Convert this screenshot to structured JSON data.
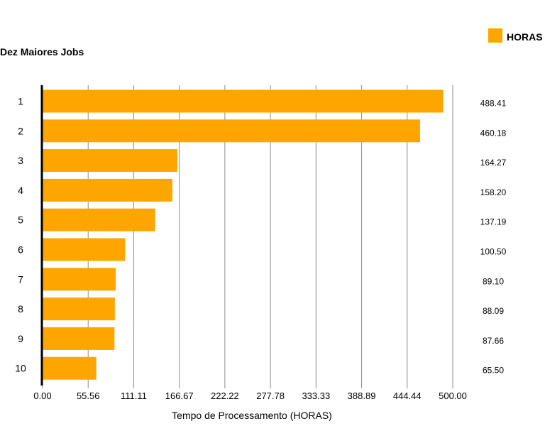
{
  "chart_data": {
    "type": "bar",
    "orientation": "horizontal",
    "title": "Dez Maiores Jobs",
    "xlabel": "Tempo de Processamento (HORAS)",
    "ylabel": "",
    "xlim": [
      0,
      500
    ],
    "grid": true,
    "legend_position": "top-right",
    "bar_color": "#FFA500",
    "ticks": [
      "0.00",
      "55.56",
      "111.11",
      "166.67",
      "222.22",
      "277.78",
      "333.33",
      "388.89",
      "444.44",
      "500.00"
    ],
    "tick_values": [
      0,
      55.56,
      111.11,
      166.67,
      222.22,
      277.78,
      333.33,
      388.89,
      444.44,
      500
    ],
    "categories": [
      "1",
      "2",
      "3",
      "4",
      "5",
      "6",
      "7",
      "8",
      "9",
      "10"
    ],
    "series": [
      {
        "name": "HORAS",
        "values": [
          488.41,
          460.18,
          164.27,
          158.2,
          137.19,
          100.5,
          89.1,
          88.09,
          87.66,
          65.5
        ],
        "labels": [
          "488.41",
          "460.18",
          "164.27",
          "158.20",
          "137.19",
          "100.50",
          "89.10",
          "88.09",
          "87.66",
          "65.50"
        ]
      }
    ]
  }
}
